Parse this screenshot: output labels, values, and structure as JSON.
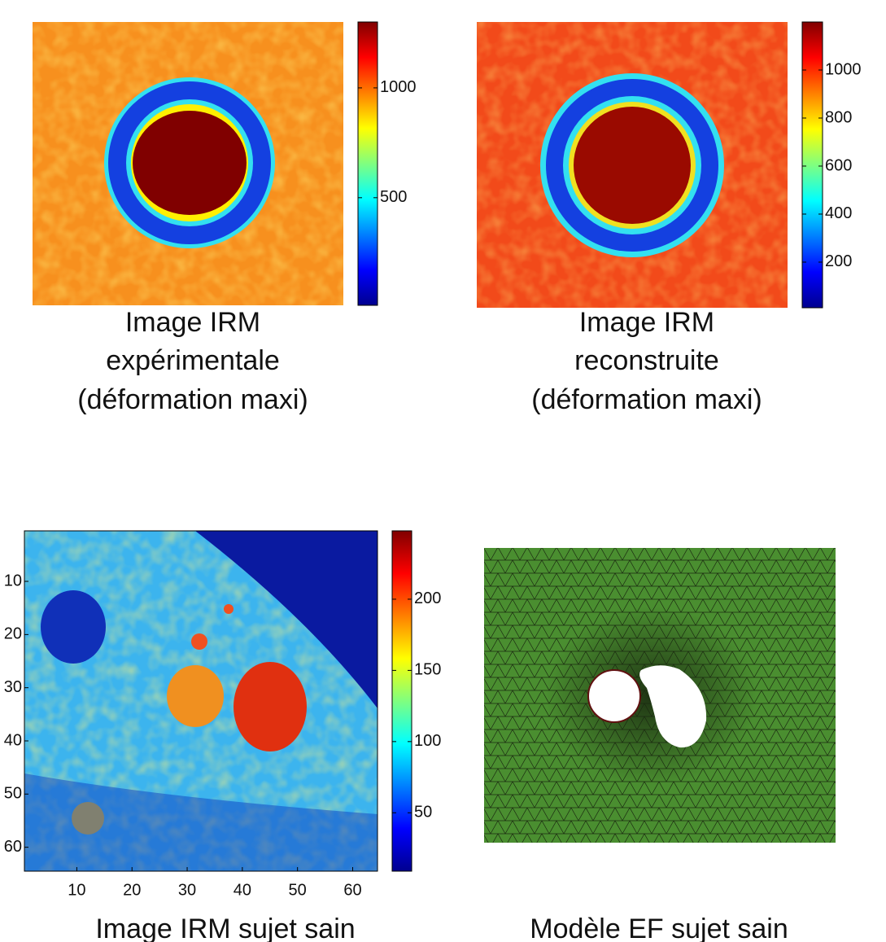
{
  "panels": [
    {
      "caption": [
        "Image IRM",
        "expérimentale",
        "(déformation maxi)"
      ],
      "colorbar": {
        "range": [
          10,
          1300
        ],
        "ticks": [
          500,
          1000
        ]
      }
    },
    {
      "caption": [
        "Image IRM",
        "reconstruite",
        "(déformation maxi)"
      ],
      "colorbar": {
        "range": [
          10,
          1200
        ],
        "ticks": [
          200,
          400,
          600,
          800,
          1000
        ]
      }
    },
    {
      "caption": [
        "Image IRM sujet sain"
      ],
      "colorbar": {
        "range": [
          9,
          248
        ],
        "ticks": [
          50,
          100,
          150,
          200
        ]
      },
      "xlim": [
        0.5,
        64.5
      ],
      "ylim": [
        0.5,
        64.5
      ],
      "xticks": [
        10,
        20,
        30,
        40,
        50,
        60
      ],
      "yticks": [
        10,
        20,
        30,
        40,
        50,
        60
      ]
    },
    {
      "caption": [
        "Modèle EF sujet sain"
      ]
    }
  ]
}
